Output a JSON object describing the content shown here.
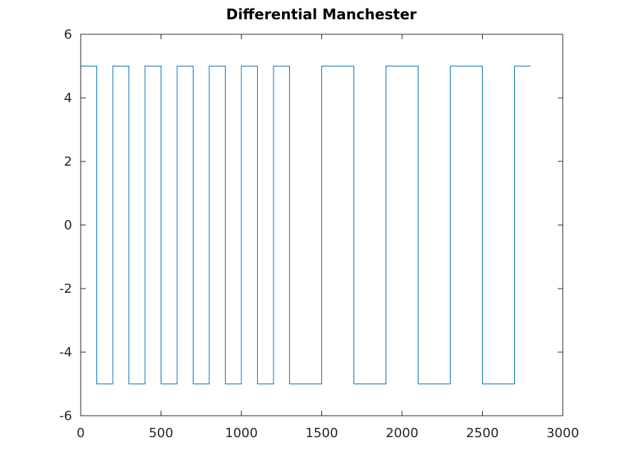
{
  "chart_data": {
    "type": "line",
    "title": "Differential Manchester",
    "xlabel": "",
    "ylabel": "",
    "xlim": [
      0,
      3000
    ],
    "ylim": [
      -6,
      6
    ],
    "xticks": [
      0,
      500,
      1000,
      1500,
      2000,
      2500,
      3000
    ],
    "yticks": [
      -6,
      -4,
      -2,
      0,
      2,
      4,
      6
    ],
    "x_tick_labels": [
      "0",
      "500",
      "1000",
      "1500",
      "2000",
      "2500",
      "3000"
    ],
    "y_tick_labels": [
      "-6",
      "-4",
      "-2",
      "0",
      "2",
      "4",
      "6"
    ],
    "grid": false,
    "line_color": "#0072bd",
    "series": [
      {
        "values_step": [
          [
            0,
            5
          ],
          [
            100,
            -5
          ],
          [
            200,
            5
          ],
          [
            300,
            -5
          ],
          [
            400,
            5
          ],
          [
            500,
            -5
          ],
          [
            600,
            5
          ],
          [
            700,
            -5
          ],
          [
            800,
            5
          ],
          [
            900,
            -5
          ],
          [
            1000,
            5
          ],
          [
            1100,
            -5
          ],
          [
            1200,
            5
          ],
          [
            1300,
            -5
          ],
          [
            1500,
            5
          ],
          [
            1700,
            -5
          ],
          [
            1900,
            5
          ],
          [
            2100,
            -5
          ],
          [
            2300,
            5
          ],
          [
            2500,
            -5
          ],
          [
            2700,
            5
          ],
          [
            2800,
            5
          ]
        ]
      }
    ]
  }
}
